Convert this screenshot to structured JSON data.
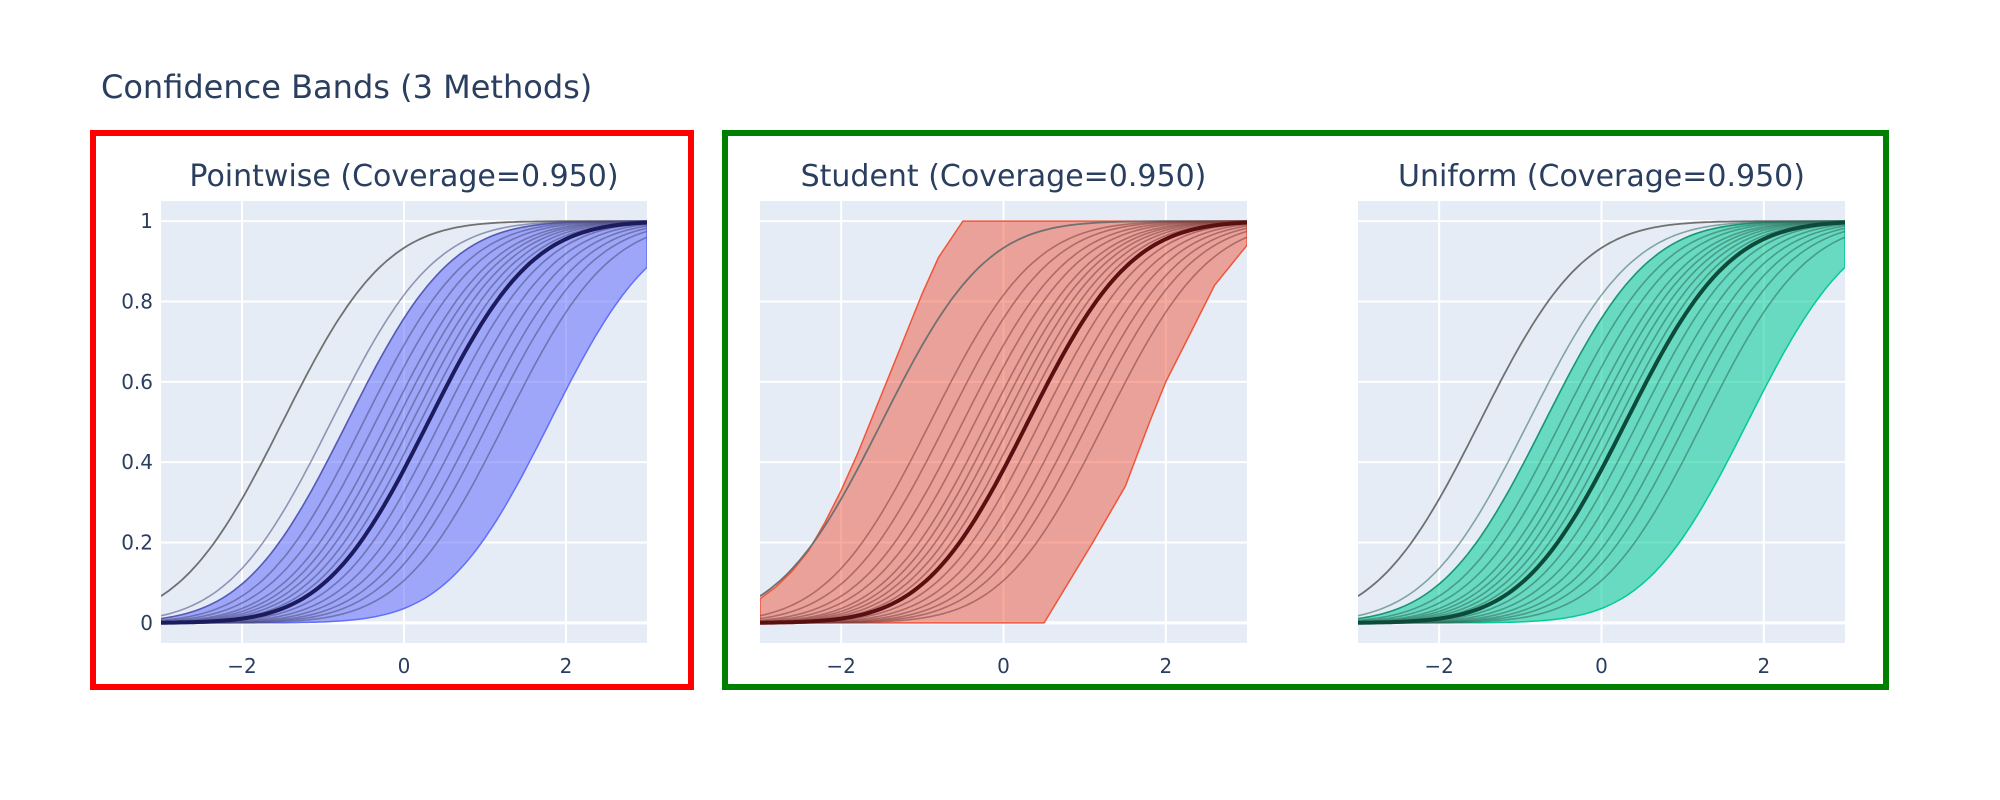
{
  "title": "Confidence Bands (3 Methods)",
  "colors": {
    "plot_bg": "#e5ecf6",
    "grid": "#ffffff",
    "text": "#2a3f5f",
    "highlight_red": "#ff0000",
    "highlight_green": "#008000",
    "reference_curve": "#707070"
  },
  "chart_data": [
    {
      "type": "line",
      "title": "Pointwise (Coverage=0.950)",
      "xlabel": "",
      "ylabel": "",
      "xlim": [
        -3,
        3
      ],
      "ylim": [
        -0.05,
        1.05
      ],
      "x_ticks": [
        -2,
        0,
        2
      ],
      "x_tick_labels": [
        "−2",
        "0",
        "2"
      ],
      "y_ticks": [
        0,
        0.2,
        0.4,
        0.6,
        0.8,
        1
      ],
      "y_tick_labels": [
        "0",
        "0.2",
        "0.4",
        "0.6",
        "0.8",
        "1"
      ],
      "grid": true,
      "band": {
        "kind": "pointwise",
        "lower_shift": 1.5,
        "upper_shift": -1.0,
        "fill": "#636efa",
        "fill_opacity": 0.55,
        "edge": "#636efa"
      },
      "mean_curve": {
        "color": "#1b1b5e",
        "mean": 0.3,
        "sd": 1.0
      },
      "reference_curve": {
        "mean": -1.5,
        "sd": 1.0
      },
      "samples": {
        "color": "#4a4a7a",
        "means": [
          -0.9,
          -0.7,
          -0.5,
          -0.35,
          -0.2,
          -0.1,
          0.0,
          0.1,
          0.2,
          0.3,
          0.45,
          0.6,
          0.75,
          0.9,
          1.05,
          1.25
        ],
        "sd": 1.0
      },
      "highlight": "red"
    },
    {
      "type": "line",
      "title": "Student (Coverage=0.950)",
      "xlabel": "",
      "ylabel": "",
      "xlim": [
        -3,
        3
      ],
      "ylim": [
        -0.05,
        1.05
      ],
      "x_ticks": [
        -2,
        0,
        2
      ],
      "x_tick_labels": [
        "−2",
        "0",
        "2"
      ],
      "y_ticks": [
        0,
        0.2,
        0.4,
        0.6,
        0.8,
        1
      ],
      "y_tick_labels": [
        "0",
        "0.2",
        "0.4",
        "0.6",
        "0.8",
        "1"
      ],
      "grid": true,
      "band": {
        "kind": "student",
        "upper_pts": [
          [
            -3,
            0.06
          ],
          [
            -2.8,
            0.09
          ],
          [
            -2.6,
            0.13
          ],
          [
            -2.4,
            0.18
          ],
          [
            -2.2,
            0.25
          ],
          [
            -2.0,
            0.33
          ],
          [
            -1.8,
            0.42
          ],
          [
            -1.6,
            0.52
          ],
          [
            -1.4,
            0.62
          ],
          [
            -1.2,
            0.72
          ],
          [
            -1.0,
            0.82
          ],
          [
            -0.8,
            0.91
          ],
          [
            -0.5,
            1.0
          ],
          [
            3,
            1.0
          ]
        ],
        "lower_pts": [
          [
            -3,
            0.0
          ],
          [
            0.5,
            0.0
          ],
          [
            0.8,
            0.1
          ],
          [
            1.1,
            0.2
          ],
          [
            1.5,
            0.34
          ],
          [
            1.8,
            0.5
          ],
          [
            2.0,
            0.6
          ],
          [
            2.3,
            0.72
          ],
          [
            2.6,
            0.84
          ],
          [
            3,
            0.94
          ]
        ],
        "fill": "#ef553b",
        "fill_opacity": 0.5,
        "edge": "#ef553b"
      },
      "mean_curve": {
        "color": "#5a1010",
        "mean": 0.3,
        "sd": 1.0
      },
      "reference_curve": {
        "mean": -1.5,
        "sd": 1.0
      },
      "samples": {
        "color": "#7a4040",
        "means": [
          -0.9,
          -0.7,
          -0.5,
          -0.35,
          -0.2,
          -0.1,
          0.0,
          0.1,
          0.2,
          0.3,
          0.45,
          0.6,
          0.75,
          0.9,
          1.05,
          1.25
        ],
        "sd": 1.0
      },
      "highlight": "green"
    },
    {
      "type": "line",
      "title": "Uniform (Coverage=0.950)",
      "xlabel": "",
      "ylabel": "",
      "xlim": [
        -3,
        3
      ],
      "ylim": [
        -0.05,
        1.05
      ],
      "x_ticks": [
        -2,
        0,
        2
      ],
      "x_tick_labels": [
        "−2",
        "0",
        "2"
      ],
      "y_ticks": [
        0,
        0.2,
        0.4,
        0.6,
        0.8,
        1
      ],
      "y_tick_labels": [
        "0",
        "0.2",
        "0.4",
        "0.6",
        "0.8",
        "1"
      ],
      "grid": true,
      "band": {
        "kind": "pointwise",
        "lower_shift": 1.5,
        "upper_shift": -1.0,
        "fill": "#00cc96",
        "fill_opacity": 0.55,
        "edge": "#00cc96"
      },
      "mean_curve": {
        "color": "#0d4a3a",
        "mean": 0.3,
        "sd": 1.0
      },
      "reference_curve": {
        "mean": -1.5,
        "sd": 1.0
      },
      "samples": {
        "color": "#2f6a5a",
        "means": [
          -0.9,
          -0.7,
          -0.5,
          -0.35,
          -0.2,
          -0.1,
          0.0,
          0.1,
          0.2,
          0.3,
          0.45,
          0.6,
          0.75,
          0.9,
          1.05,
          1.25
        ],
        "sd": 1.0
      },
      "highlight": "green"
    }
  ]
}
